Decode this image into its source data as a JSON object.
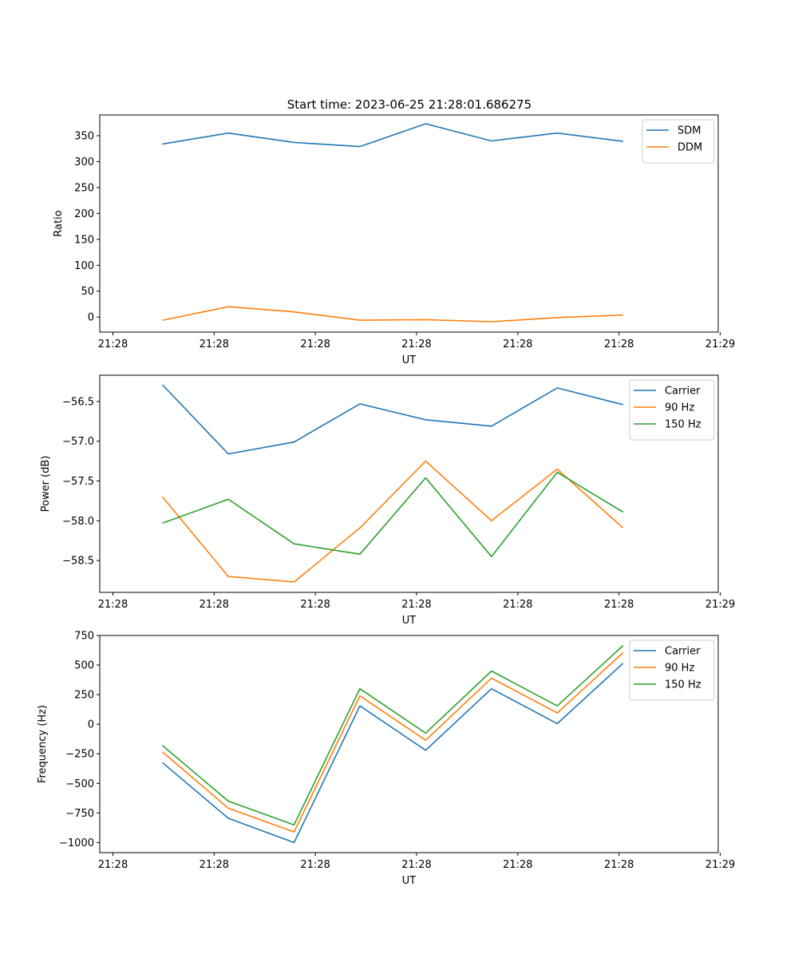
{
  "title": "Start time: 2023-06-25 21:28:01.686275",
  "chart_data": [
    {
      "type": "line",
      "title": "Start time: 2023-06-25 21:28:01.686275",
      "xlabel": "UT",
      "ylabel": "Ratio",
      "x_tick_labels": [
        "21:28",
        "21:28",
        "21:28",
        "21:28",
        "21:28",
        "21:28",
        "21:29"
      ],
      "x_tick_positions": [
        0,
        1,
        2,
        3,
        4,
        5,
        6
      ],
      "xlim": [
        -0.13,
        5.98
      ],
      "ylim": [
        -29,
        390
      ],
      "yticks": [
        0,
        50,
        100,
        150,
        200,
        250,
        300,
        350
      ],
      "x": [
        0.49,
        1.14,
        1.79,
        2.44,
        3.09,
        3.74,
        4.39,
        5.04
      ],
      "series": [
        {
          "name": "SDM",
          "color": "#1f77b4",
          "values": [
            334,
            355,
            337,
            329,
            373,
            340,
            355,
            339
          ]
        },
        {
          "name": "DDM",
          "color": "#ff7f0e",
          "values": [
            -6,
            20,
            10,
            -6,
            -5,
            -9,
            -1,
            4
          ]
        }
      ],
      "legend_loc": "upper right",
      "grid": false
    },
    {
      "type": "line",
      "xlabel": "UT",
      "ylabel": "Power (dB)",
      "x_tick_labels": [
        "21:28",
        "21:28",
        "21:28",
        "21:28",
        "21:28",
        "21:28",
        "21:29"
      ],
      "x_tick_positions": [
        0,
        1,
        2,
        3,
        4,
        5,
        6
      ],
      "xlim": [
        -0.13,
        5.98
      ],
      "ylim": [
        -58.9,
        -56.17
      ],
      "yticks": [
        -58.5,
        -58.0,
        -57.5,
        -57.0,
        -56.5
      ],
      "ytick_labels": [
        "−58.5",
        "−58.0",
        "−57.5",
        "−57.0",
        "−56.5"
      ],
      "x": [
        0.49,
        1.14,
        1.79,
        2.44,
        3.09,
        3.74,
        4.39,
        5.04
      ],
      "series": [
        {
          "name": "Carrier",
          "color": "#1f77b4",
          "values": [
            -56.29,
            -57.16,
            -57.01,
            -56.53,
            -56.73,
            -56.81,
            -56.33,
            -56.54
          ]
        },
        {
          "name": "90 Hz",
          "color": "#ff7f0e",
          "values": [
            -57.7,
            -58.7,
            -58.77,
            -58.09,
            -57.25,
            -58.0,
            -57.35,
            -58.09
          ]
        },
        {
          "name": "150 Hz",
          "color": "#2ca02c",
          "values": [
            -58.03,
            -57.73,
            -58.29,
            -58.42,
            -57.46,
            -58.45,
            -57.39,
            -57.89
          ]
        }
      ],
      "legend_loc": "upper right",
      "grid": false
    },
    {
      "type": "line",
      "xlabel": "UT",
      "ylabel": "Frequency (Hz)",
      "x_tick_labels": [
        "21:28",
        "21:28",
        "21:28",
        "21:28",
        "21:28",
        "21:28",
        "21:29"
      ],
      "x_tick_positions": [
        0,
        1,
        2,
        3,
        4,
        5,
        6
      ],
      "xlim": [
        -0.13,
        5.98
      ],
      "ylim": [
        -1085,
        750
      ],
      "yticks": [
        -1000,
        -750,
        -500,
        -250,
        0,
        250,
        500,
        750
      ],
      "ytick_labels": [
        "−1000",
        "−750",
        "−500",
        "−250",
        "0",
        "250",
        "500",
        "750"
      ],
      "x": [
        0.49,
        1.14,
        1.79,
        2.44,
        3.09,
        3.74,
        4.39,
        5.04
      ],
      "series": [
        {
          "name": "Carrier",
          "color": "#1f77b4",
          "values": [
            -325,
            -795,
            -1000,
            155,
            -220,
            300,
            5,
            515
          ]
        },
        {
          "name": "90 Hz",
          "color": "#ff7f0e",
          "values": [
            -235,
            -710,
            -910,
            240,
            -135,
            390,
            95,
            605
          ]
        },
        {
          "name": "150 Hz",
          "color": "#2ca02c",
          "values": [
            -180,
            -650,
            -850,
            300,
            -75,
            450,
            155,
            665
          ]
        }
      ],
      "legend_loc": "upper right",
      "grid": false
    }
  ]
}
